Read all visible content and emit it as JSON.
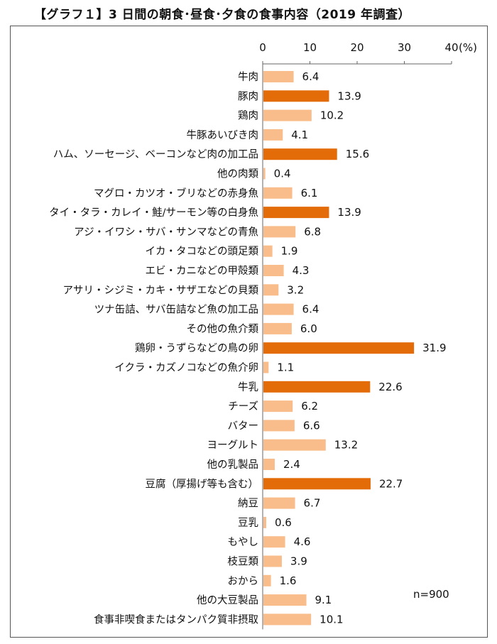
{
  "title": "【グラフ１】3 日間の朝食･昼食･夕食の食事内容（2019 年調査）",
  "note": "n=900",
  "chart_data": {
    "type": "bar",
    "orientation": "horizontal",
    "xlim": [
      0,
      40
    ],
    "x_ticks": [
      "0",
      "10",
      "20",
      "30",
      "40"
    ],
    "x_unit": "(%)",
    "grid": false,
    "colors": {
      "normal": "#f9bd8c",
      "highlight": "#e36c09"
    },
    "categories": [
      "牛肉",
      "豚肉",
      "鶏肉",
      "牛豚あいびき肉",
      "ハム、ソーセージ、ベーコンなど肉の加工品",
      "他の肉類",
      "マグロ・カツオ・ブリなどの赤身魚",
      "タイ・タラ・カレイ・鮭/サーモン等の白身魚",
      "アジ・イワシ・サバ・サンマなどの青魚",
      "イカ・タコなどの頭足類",
      "エビ・カニなどの甲殻類",
      "アサリ・シジミ・カキ・サザエなどの貝類",
      "ツナ缶詰、サバ缶詰など魚の加工品",
      "その他の魚介類",
      "鶏卵・うずらなどの鳥の卵",
      "イクラ・カズノコなどの魚介卵",
      "牛乳",
      "チーズ",
      "バター",
      "ヨーグルト",
      "他の乳製品",
      "豆腐（厚揚げ等も含む）",
      "納豆",
      "豆乳",
      "もやし",
      "枝豆類",
      "おから",
      "他の大豆製品",
      "食事非喫食またはタンパク質非摂取"
    ],
    "values": [
      6.4,
      13.9,
      10.2,
      4.1,
      15.6,
      0.4,
      6.1,
      13.9,
      6.8,
      1.9,
      4.3,
      3.2,
      6.4,
      6.0,
      31.9,
      1.1,
      22.6,
      6.2,
      6.6,
      13.2,
      2.4,
      22.7,
      6.7,
      0.6,
      4.6,
      3.9,
      1.6,
      9.1,
      10.1
    ],
    "value_labels": [
      "6.4",
      "13.9",
      "10.2",
      "4.1",
      "15.6",
      "0.4",
      "6.1",
      "13.9",
      "6.8",
      "1.9",
      "4.3",
      "3.2",
      "6.4",
      "6.0",
      "31.9",
      "1.1",
      "22.6",
      "6.2",
      "6.6",
      "13.2",
      "2.4",
      "22.7",
      "6.7",
      "0.6",
      "4.6",
      "3.9",
      "1.6",
      "9.1",
      "10.1"
    ],
    "highlighted": [
      false,
      true,
      false,
      false,
      true,
      false,
      false,
      true,
      false,
      false,
      false,
      false,
      false,
      false,
      true,
      false,
      true,
      false,
      false,
      false,
      false,
      true,
      false,
      false,
      false,
      false,
      false,
      false,
      false
    ]
  }
}
